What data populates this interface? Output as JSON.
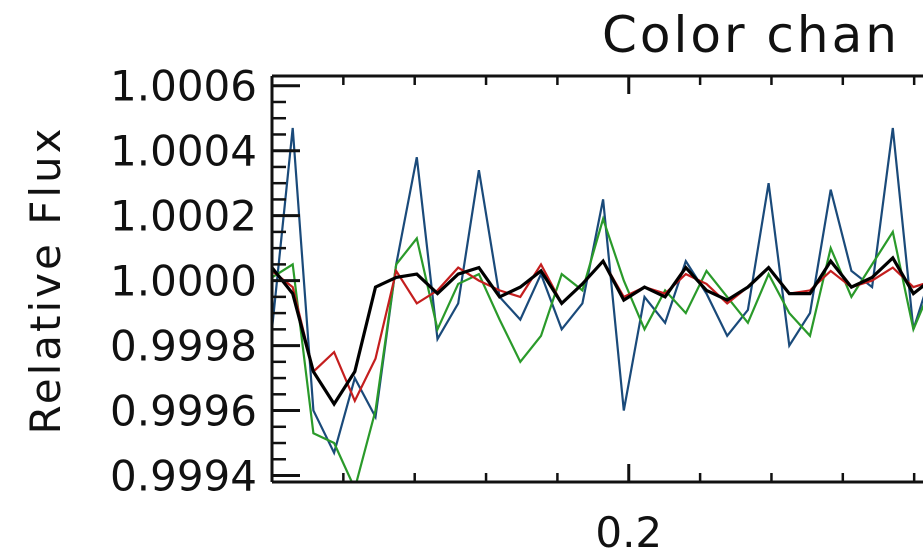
{
  "chart_data": {
    "type": "line",
    "title": "Color chan",
    "xlabel": "",
    "ylabel": "Relative Flux",
    "xlim": [
      0.1,
      0.285
    ],
    "ylim": [
      0.99938,
      1.00063
    ],
    "grid": false,
    "legend": "none",
    "x_ticks": [
      {
        "value": 0.2,
        "label": "0.2"
      }
    ],
    "y_ticks": [
      {
        "value": 1.0006,
        "label": "1.0006"
      },
      {
        "value": 1.0004,
        "label": "1.0004"
      },
      {
        "value": 1.0002,
        "label": "1.0002"
      },
      {
        "value": 1.0,
        "label": "1.0000"
      },
      {
        "value": 0.9998,
        "label": "0.9998"
      },
      {
        "value": 0.9996,
        "label": "0.9996"
      },
      {
        "value": 0.9994,
        "label": "0.9994"
      }
    ],
    "x": [
      0.1,
      0.1058,
      0.1116,
      0.1174,
      0.1232,
      0.129,
      0.1348,
      0.1406,
      0.1464,
      0.1522,
      0.158,
      0.1638,
      0.1696,
      0.1754,
      0.1812,
      0.187,
      0.1928,
      0.1986,
      0.2044,
      0.2102,
      0.216,
      0.2218,
      0.2276,
      0.2334,
      0.2392,
      0.245,
      0.2508,
      0.2566,
      0.2624,
      0.2682,
      0.274,
      0.2798,
      0.2856
    ],
    "series": [
      {
        "color": "#1a4a7a",
        "values": [
          0.99985,
          1.00047,
          0.9996,
          0.99947,
          0.9997,
          0.99958,
          1.00005,
          1.00038,
          0.99982,
          0.99993,
          1.00034,
          0.99995,
          0.99988,
          1.00002,
          0.99985,
          0.99993,
          1.00025,
          0.9996,
          0.99995,
          0.99987,
          1.00006,
          0.99996,
          0.99983,
          0.99991,
          1.0003,
          0.9998,
          0.9999,
          1.00028,
          1.00003,
          0.99998,
          1.00047,
          0.99985,
          1.00005
        ]
      },
      {
        "color": "#2a9a2a",
        "values": [
          1.00001,
          1.00005,
          0.99953,
          0.9995,
          0.99936,
          0.9996,
          1.00005,
          1.00013,
          0.99985,
          0.99999,
          1.00002,
          0.99988,
          0.99975,
          0.99983,
          1.00002,
          0.99997,
          1.00019,
          1.0,
          0.99985,
          0.99997,
          0.9999,
          1.00003,
          0.99995,
          0.99987,
          1.00002,
          0.9999,
          0.99983,
          1.0001,
          0.99995,
          1.00005,
          1.00015,
          0.99985,
          1.0
        ]
      },
      {
        "color": "#c41e1e",
        "values": [
          1.00003,
          0.99998,
          0.99972,
          0.99978,
          0.99963,
          0.99976,
          1.00003,
          0.99993,
          0.99997,
          1.00004,
          1.0,
          0.99997,
          0.99995,
          1.00005,
          0.99993,
          0.99999,
          1.00006,
          0.99995,
          0.99998,
          0.99996,
          1.00002,
          0.99999,
          0.99993,
          0.99998,
          1.00004,
          0.99996,
          0.99997,
          1.00003,
          0.99998,
          1.0,
          1.00004,
          0.99998,
          1.0
        ]
      },
      {
        "color": "#000000",
        "values": [
          1.00004,
          0.99996,
          0.99972,
          0.99962,
          0.99972,
          0.99998,
          1.00001,
          1.00002,
          0.99996,
          1.00002,
          1.00004,
          0.99995,
          0.99998,
          1.00003,
          0.99993,
          0.99999,
          1.00006,
          0.99994,
          0.99998,
          0.99995,
          1.00004,
          0.99997,
          0.99994,
          0.99998,
          1.00004,
          0.99996,
          0.99996,
          1.00006,
          0.99998,
          1.00001,
          1.00007,
          0.99996,
          1.00001
        ]
      }
    ]
  }
}
